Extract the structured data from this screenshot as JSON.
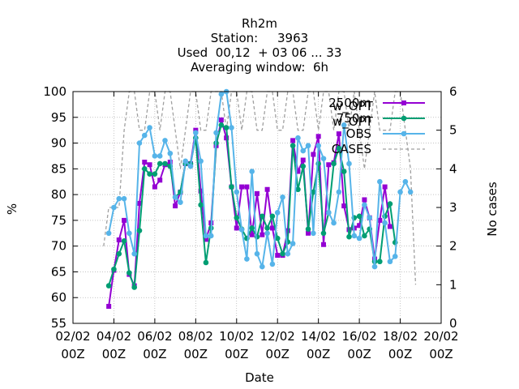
{
  "chart_data": {
    "type": "line",
    "title_lines": [
      "Rh2m",
      "Station:     3963",
      "Used  00,12  + 03 06 ... 33",
      "Averaging window:  6h"
    ],
    "xlabel": "Date",
    "ylabel": "%",
    "y2label": "No cases",
    "x_range": [
      "2/02 00Z",
      "20/02 00Z"
    ],
    "ylim": [
      55,
      100
    ],
    "y2lim": [
      0,
      6
    ],
    "x_ticks": [
      {
        "label1": "02/02",
        "label2": "00Z",
        "day": 2
      },
      {
        "label1": "04/02",
        "label2": "00Z",
        "day": 4
      },
      {
        "label1": "06/02",
        "label2": "00Z",
        "day": 6
      },
      {
        "label1": "08/02",
        "label2": "00Z",
        "day": 8
      },
      {
        "label1": "10/02",
        "label2": "00Z",
        "day": 10
      },
      {
        "label1": "12/02",
        "label2": "00Z",
        "day": 12
      },
      {
        "label1": "14/02",
        "label2": "00Z",
        "day": 14
      },
      {
        "label1": "16/02",
        "label2": "00Z",
        "day": 16
      },
      {
        "label1": "18/02",
        "label2": "00Z",
        "day": 18
      },
      {
        "label1": "20/02",
        "label2": "00Z",
        "day": 20
      }
    ],
    "y_ticks": [
      "55",
      "60",
      "65",
      "70",
      "75",
      "80",
      "85",
      "90",
      "95",
      "100"
    ],
    "y2_ticks": [
      "0",
      "1",
      "2",
      "3",
      "4",
      "5",
      "6"
    ],
    "grid": true,
    "legend_position": "top-right",
    "series": [
      {
        "name": "2500m",
        "name_suffix": "w_OPT",
        "color": "#9400d3",
        "marker": "square",
        "x": [
          3.75,
          4,
          4.25,
          4.5,
          4.75,
          5,
          5.25,
          5.5,
          5.75,
          6,
          6.25,
          6.5,
          6.75,
          7,
          7.25,
          7.5,
          7.75,
          8,
          8.25,
          8.5,
          8.75,
          9,
          9.25,
          9.5,
          9.75,
          10,
          10.25,
          10.5,
          10.75,
          11,
          11.25,
          11.5,
          11.75,
          12,
          12.25,
          12.5,
          12.75,
          13,
          13.25,
          13.5,
          13.75,
          14,
          14.25,
          14.5,
          14.75,
          15,
          15.25,
          15.5,
          15.75,
          16,
          16.25,
          16.5,
          16.75,
          17,
          17.25,
          17.5,
          17.75,
          18,
          18.25,
          18.5,
          18.75
        ],
        "values": [
          58.3,
          65.3,
          71.2,
          75,
          64.5,
          62.3,
          78.3,
          86.3,
          85.8,
          81.5,
          82.8,
          85.8,
          86.3,
          77.8,
          80.5,
          86,
          86,
          92.5,
          80.7,
          71.3,
          74.5,
          89.5,
          94.5,
          91,
          81.5,
          73.5,
          81.5,
          81.5,
          72.2,
          80.2,
          72.2,
          81,
          73.5,
          68.2,
          68.2,
          73,
          90.5,
          84.5,
          86.7,
          72.5,
          87.8,
          91.3,
          70.3,
          85.8,
          86.2,
          91.8,
          77.8,
          73.2,
          73.5,
          74,
          79,
          75.5,
          67.5,
          75,
          81.5,
          73.8,
          null,
          null,
          null,
          null,
          null
        ]
      },
      {
        "name": "750m",
        "name_suffix": "w_OPT",
        "color": "#009e73",
        "marker": "circle",
        "x": [
          3.75,
          4,
          4.25,
          4.5,
          4.75,
          5,
          5.25,
          5.5,
          5.75,
          6,
          6.25,
          6.5,
          6.75,
          7,
          7.25,
          7.5,
          7.75,
          8,
          8.25,
          8.5,
          8.75,
          9,
          9.25,
          9.5,
          9.75,
          10,
          10.25,
          10.5,
          10.75,
          11,
          11.25,
          11.5,
          11.75,
          12,
          12.25,
          12.5,
          12.75,
          13,
          13.25,
          13.5,
          13.75,
          14,
          14.25,
          14.5,
          14.75,
          15,
          15.25,
          15.5,
          15.75,
          16,
          16.25,
          16.5,
          16.75,
          17,
          17.25,
          17.5,
          17.75,
          18,
          18.25,
          18.5,
          18.75
        ],
        "values": [
          62.3,
          65.5,
          68.5,
          71,
          64.8,
          62,
          73,
          85,
          84,
          84,
          86,
          86,
          85.5,
          79.5,
          80.5,
          86,
          86,
          91,
          78,
          66.8,
          73.5,
          90,
          93.5,
          93,
          81.5,
          75.5,
          73.3,
          71.5,
          73.5,
          71.8,
          75.8,
          73.5,
          75.8,
          71.5,
          68.5,
          70.8,
          89.5,
          81,
          85.5,
          73.3,
          80.5,
          86,
          72.5,
          76.5,
          86,
          89,
          84.5,
          71.8,
          75.5,
          75.8,
          72,
          73.3,
          67,
          67,
          75.8,
          78.2,
          70.7,
          null,
          null,
          null,
          null
        ]
      },
      {
        "name": "OBS",
        "name_suffix": "",
        "color": "#56b4e9",
        "marker": "circle",
        "x": [
          3.75,
          4,
          4.25,
          4.5,
          4.75,
          5,
          5.25,
          5.5,
          5.75,
          6,
          6.25,
          6.5,
          6.75,
          7,
          7.25,
          7.5,
          7.75,
          8,
          8.25,
          8.5,
          8.75,
          9,
          9.25,
          9.5,
          9.75,
          10,
          10.25,
          10.5,
          10.75,
          11,
          11.25,
          11.5,
          11.75,
          12,
          12.25,
          12.5,
          12.75,
          13,
          13.25,
          13.5,
          13.75,
          14,
          14.25,
          14.5,
          14.75,
          15,
          15.25,
          15.5,
          15.75,
          16,
          16.25,
          16.5,
          16.75,
          17,
          17.25,
          17.5,
          17.75,
          18,
          18.25,
          18.5,
          18.75
        ],
        "values": [
          72.5,
          77.5,
          79.2,
          79.2,
          72.5,
          68.5,
          90,
          91.5,
          93,
          87.5,
          87.5,
          90.5,
          88,
          79.5,
          78.5,
          86.5,
          85.5,
          92,
          86.5,
          72,
          72,
          92,
          99.5,
          100,
          93,
          80.5,
          73.2,
          67.5,
          84.5,
          68.5,
          66,
          72.5,
          66.5,
          76.5,
          79.5,
          68.5,
          70.5,
          91,
          88.5,
          89.5,
          72.5,
          89.5,
          87,
          76.5,
          74.5,
          80.5,
          93.5,
          86,
          72,
          71.5,
          78,
          75.5,
          66,
          82.5,
          74.5,
          67,
          68,
          80.5,
          82.5,
          80.5,
          null
        ]
      }
    ],
    "cases_series": {
      "name": "CASES",
      "axis": "y2",
      "color": "#a0a0a0",
      "dash": true,
      "x": [
        3.5,
        3.75,
        4,
        4.25,
        4.5,
        4.75,
        5,
        5.25,
        5.5,
        5.75,
        6,
        6.25,
        6.5,
        6.75,
        7,
        7.25,
        7.5,
        7.75,
        8,
        8.25,
        8.5,
        8.75,
        9,
        9.25,
        9.5,
        9.75,
        10,
        10.25,
        10.5,
        10.75,
        11,
        11.25,
        11.5,
        11.75,
        12,
        12.25,
        12.5,
        12.75,
        13,
        13.25,
        13.5,
        13.75,
        14,
        14.25,
        14.5,
        14.75,
        15,
        15.25,
        15.5,
        15.75,
        16,
        16.25,
        16.5,
        16.75,
        17,
        17.25,
        17.5,
        17.75,
        18,
        18.25,
        18.5,
        18.75
      ],
      "values": [
        2,
        3,
        3,
        3,
        5,
        6,
        6,
        5,
        5,
        6,
        6,
        5,
        6,
        6,
        5,
        4,
        5,
        6,
        6,
        5,
        5,
        6,
        6,
        6,
        5,
        6,
        6,
        5,
        6,
        6,
        5,
        5,
        6,
        6,
        5,
        5,
        6,
        6,
        5,
        5,
        6,
        6,
        5,
        6,
        6,
        5,
        6,
        6,
        5,
        6,
        5,
        4,
        5,
        6,
        5,
        5,
        5,
        6,
        6,
        5,
        4,
        1
      ]
    }
  }
}
